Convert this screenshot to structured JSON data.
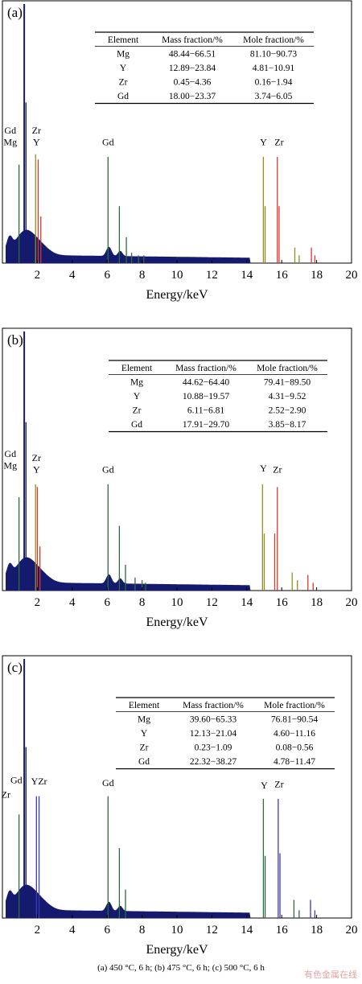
{
  "caption": "(a) 450 °C,    6 h; (b) 475 °C, 6 h; (c) 500  °C, 6 h",
  "watermark": "有色金属在线",
  "colors": {
    "frame": "#000000",
    "background": "#ffffff",
    "spectrum_fill": "#141a6e",
    "red_lines": "#d43a2c",
    "green_lines": "#2d6b3c",
    "olive_lines": "#8f8f1f",
    "blue_lines": "#3c3ab0"
  },
  "chart_data": [
    {
      "type": "area",
      "panel_label": "(a)",
      "xlabel": "Energy/keV",
      "ylabel": "",
      "xlim": [
        0,
        20
      ],
      "xticks": [
        2,
        4,
        6,
        8,
        10,
        12,
        14,
        16,
        18,
        20
      ],
      "table": {
        "headers": [
          "Element",
          "Mass fraction/%",
          "Mole fraction/%"
        ],
        "rows": [
          [
            "Mg",
            "48.44−66.51",
            "81.10−90.73"
          ],
          [
            "Y",
            "12.89−23.84",
            "4.81−10.91"
          ],
          [
            "Zr",
            "0.45−4.36",
            "0.16−1.94"
          ],
          [
            "Gd",
            "18.00−23.37",
            "3.74−6.05"
          ]
        ]
      },
      "annotations": [
        {
          "text": "Gd",
          "x": 0.45,
          "y": 0.5
        },
        {
          "text": "Mg",
          "x": 0.45,
          "y": 0.455
        },
        {
          "text": "Zr",
          "x": 1.95,
          "y": 0.5
        },
        {
          "text": "Y",
          "x": 1.95,
          "y": 0.455
        },
        {
          "text": "Gd",
          "x": 6.05,
          "y": 0.455
        },
        {
          "text": "Y",
          "x": 14.95,
          "y": 0.455
        },
        {
          "text": "Zr",
          "x": 15.85,
          "y": 0.455
        }
      ],
      "peaks": [
        {
          "x": 1.25,
          "y": 1.0,
          "color": "#141a6e"
        },
        {
          "x": 1.35,
          "y": 0.62,
          "color": "#141a6e"
        },
        {
          "x": 0.95,
          "y": 0.38,
          "color": "#2d6b3c"
        },
        {
          "x": 1.9,
          "y": 0.42,
          "color": "#8f8f1f"
        },
        {
          "x": 2.05,
          "y": 0.4,
          "color": "#d43a2c"
        },
        {
          "x": 2.2,
          "y": 0.18,
          "color": "#d43a2c"
        },
        {
          "x": 6.05,
          "y": 0.41,
          "color": "#2d6b3c"
        },
        {
          "x": 6.7,
          "y": 0.22,
          "color": "#2d6b3c"
        },
        {
          "x": 7.1,
          "y": 0.1,
          "color": "#2d6b3c"
        },
        {
          "x": 7.4,
          "y": 0.04,
          "color": "#2d6b3c"
        },
        {
          "x": 7.8,
          "y": 0.03,
          "color": "#2d6b3c"
        },
        {
          "x": 8.1,
          "y": 0.03,
          "color": "#2d6b3c"
        },
        {
          "x": 14.95,
          "y": 0.41,
          "color": "#8f8f1f"
        },
        {
          "x": 15.05,
          "y": 0.22,
          "color": "#8f8f1f"
        },
        {
          "x": 15.75,
          "y": 0.41,
          "color": "#d43a2c"
        },
        {
          "x": 15.85,
          "y": 0.22,
          "color": "#d43a2c"
        },
        {
          "x": 16.75,
          "y": 0.06,
          "color": "#8f8f1f"
        },
        {
          "x": 17.0,
          "y": 0.03,
          "color": "#8f8f1f"
        },
        {
          "x": 17.7,
          "y": 0.06,
          "color": "#d43a2c"
        },
        {
          "x": 17.9,
          "y": 0.03,
          "color": "#d43a2c"
        }
      ]
    },
    {
      "type": "area",
      "panel_label": "(b)",
      "xlabel": "Energy/keV",
      "ylabel": "",
      "xlim": [
        0,
        20
      ],
      "xticks": [
        2,
        4,
        6,
        8,
        10,
        12,
        14,
        16,
        18,
        20
      ],
      "table": {
        "headers": [
          "Element",
          "Mass fraction/%",
          "Mole fraction/%"
        ],
        "rows": [
          [
            "Mg",
            "44.62−64.40",
            "79.41−89.50"
          ],
          [
            "Y",
            "10.88−19.57",
            "4.31−9.52"
          ],
          [
            "Zr",
            "6.11−6.81",
            "2.52−2.90"
          ],
          [
            "Gd",
            "17.91−29.70",
            "3.85−8.17"
          ]
        ]
      },
      "annotations": [
        {
          "text": "Gd",
          "x": 0.45,
          "y": 0.515
        },
        {
          "text": "Mg",
          "x": 0.45,
          "y": 0.47
        },
        {
          "text": "Zr",
          "x": 1.95,
          "y": 0.5
        },
        {
          "text": "Y",
          "x": 1.95,
          "y": 0.455
        },
        {
          "text": "Gd",
          "x": 6.05,
          "y": 0.455
        },
        {
          "text": "Y",
          "x": 14.95,
          "y": 0.46
        },
        {
          "text": "Zr",
          "x": 15.75,
          "y": 0.455
        }
      ],
      "peaks": [
        {
          "x": 1.25,
          "y": 1.0,
          "color": "#141a6e"
        },
        {
          "x": 1.35,
          "y": 0.65,
          "color": "#141a6e"
        },
        {
          "x": 0.95,
          "y": 0.36,
          "color": "#2d6b3c"
        },
        {
          "x": 1.9,
          "y": 0.41,
          "color": "#8f8f1f"
        },
        {
          "x": 2.0,
          "y": 0.4,
          "color": "#d43a2c"
        },
        {
          "x": 2.15,
          "y": 0.17,
          "color": "#d43a2c"
        },
        {
          "x": 6.05,
          "y": 0.41,
          "color": "#2d6b3c"
        },
        {
          "x": 6.7,
          "y": 0.25,
          "color": "#2d6b3c"
        },
        {
          "x": 7.05,
          "y": 0.1,
          "color": "#2d6b3c"
        },
        {
          "x": 7.6,
          "y": 0.05,
          "color": "#2d6b3c"
        },
        {
          "x": 8.0,
          "y": 0.04,
          "color": "#2d6b3c"
        },
        {
          "x": 8.2,
          "y": 0.03,
          "color": "#2d6b3c"
        },
        {
          "x": 14.9,
          "y": 0.41,
          "color": "#8f8f1f"
        },
        {
          "x": 15.0,
          "y": 0.22,
          "color": "#8f8f1f"
        },
        {
          "x": 15.75,
          "y": 0.4,
          "color": "#d43a2c"
        },
        {
          "x": 15.6,
          "y": 0.22,
          "color": "#d43a2c"
        },
        {
          "x": 16.6,
          "y": 0.07,
          "color": "#8f8f1f"
        },
        {
          "x": 16.9,
          "y": 0.04,
          "color": "#8f8f1f"
        },
        {
          "x": 17.5,
          "y": 0.06,
          "color": "#d43a2c"
        },
        {
          "x": 17.8,
          "y": 0.03,
          "color": "#d43a2c"
        }
      ]
    },
    {
      "type": "area",
      "panel_label": "(c)",
      "xlabel": "Energy/keV",
      "ylabel": "",
      "xlim": [
        0,
        20
      ],
      "xticks": [
        2,
        4,
        6,
        8,
        10,
        12,
        14,
        16,
        18,
        20
      ],
      "table": {
        "headers": [
          "Element",
          "Mass fraction/%",
          "Mole fraction/%"
        ],
        "rows": [
          [
            "Mg",
            "39.60−65.33",
            "76.81−90.54"
          ],
          [
            "Y",
            "12.13−21.04",
            "4.60−11.16"
          ],
          [
            "Zr",
            "0.23−1.09",
            "0.08−0.56"
          ],
          [
            "Gd",
            "22.32−38.27",
            "4.78−11.47"
          ]
        ]
      },
      "annotations": [
        {
          "text": "Gd",
          "x": 0.8,
          "y": 0.52
        },
        {
          "text": "Zr",
          "x": 0.2,
          "y": 0.465
        },
        {
          "text": "YZr",
          "x": 2.1,
          "y": 0.515
        },
        {
          "text": "Gd",
          "x": 6.05,
          "y": 0.51
        },
        {
          "text": "Y",
          "x": 15.0,
          "y": 0.5
        },
        {
          "text": "Zr",
          "x": 15.85,
          "y": 0.505
        }
      ],
      "peaks": [
        {
          "x": 1.25,
          "y": 1.0,
          "color": "#141a6e"
        },
        {
          "x": 1.35,
          "y": 0.66,
          "color": "#141a6e"
        },
        {
          "x": 0.95,
          "y": 0.4,
          "color": "#2d6b3c"
        },
        {
          "x": 1.95,
          "y": 0.47,
          "color": "#3c3ab0"
        },
        {
          "x": 2.1,
          "y": 0.47,
          "color": "#3c3ab0"
        },
        {
          "x": 6.05,
          "y": 0.47,
          "color": "#2d6b3c"
        },
        {
          "x": 6.7,
          "y": 0.27,
          "color": "#2d6b3c"
        },
        {
          "x": 7.05,
          "y": 0.11,
          "color": "#2d6b3c"
        },
        {
          "x": 14.95,
          "y": 0.46,
          "color": "#2d6b3c"
        },
        {
          "x": 15.05,
          "y": 0.24,
          "color": "#2d6b3c"
        },
        {
          "x": 15.8,
          "y": 0.46,
          "color": "#3c3ab0"
        },
        {
          "x": 15.9,
          "y": 0.25,
          "color": "#3c3ab0"
        },
        {
          "x": 16.7,
          "y": 0.07,
          "color": "#2d6b3c"
        },
        {
          "x": 17.0,
          "y": 0.03,
          "color": "#2d6b3c"
        },
        {
          "x": 17.65,
          "y": 0.07,
          "color": "#3c3ab0"
        },
        {
          "x": 17.9,
          "y": 0.03,
          "color": "#3c3ab0"
        }
      ]
    }
  ]
}
